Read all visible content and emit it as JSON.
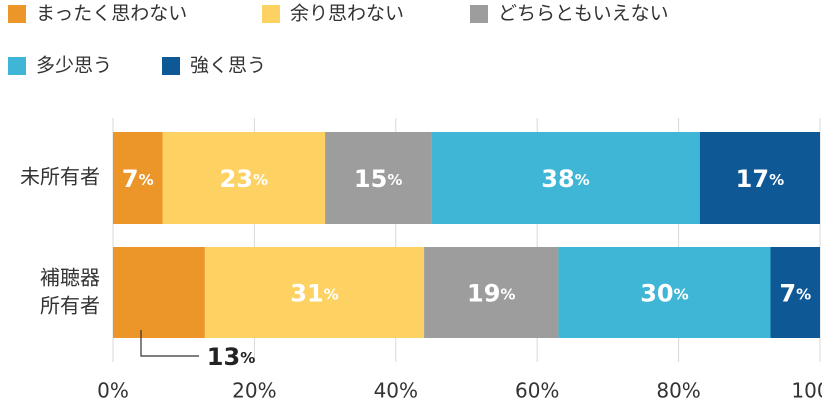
{
  "chart_data": {
    "type": "stacked_barh",
    "categories": [
      "未所有者",
      "補聴器\n所有者"
    ],
    "series": [
      {
        "name": "まったく思わない",
        "color": "#ec962a",
        "values": [
          7,
          13
        ],
        "value_labels": [
          "7%",
          "13%"
        ]
      },
      {
        "name": "余り思わない",
        "color": "#fdd262",
        "values": [
          23,
          31
        ],
        "value_labels": [
          "23%",
          "31%"
        ]
      },
      {
        "name": "どちらともいえない",
        "color": "#9d9d9d",
        "values": [
          15,
          19
        ],
        "value_labels": [
          "15%",
          "19%"
        ]
      },
      {
        "name": "多少思う",
        "color": "#3fb6d6",
        "values": [
          38,
          30
        ],
        "value_labels": [
          "38%",
          "30%"
        ]
      },
      {
        "name": "強く思う",
        "color": "#0f5896",
        "values": [
          17,
          7
        ],
        "value_labels": [
          "17%",
          "7%"
        ]
      }
    ],
    "xlim": [
      0,
      100
    ],
    "xticks": [
      {
        "value": 0,
        "label": "0%"
      },
      {
        "value": 20,
        "label": "20%"
      },
      {
        "value": 40,
        "label": "40%"
      },
      {
        "value": 60,
        "label": "60%"
      },
      {
        "value": 80,
        "label": "80%"
      },
      {
        "value": 100,
        "label": "100%"
      }
    ],
    "grid": true
  }
}
